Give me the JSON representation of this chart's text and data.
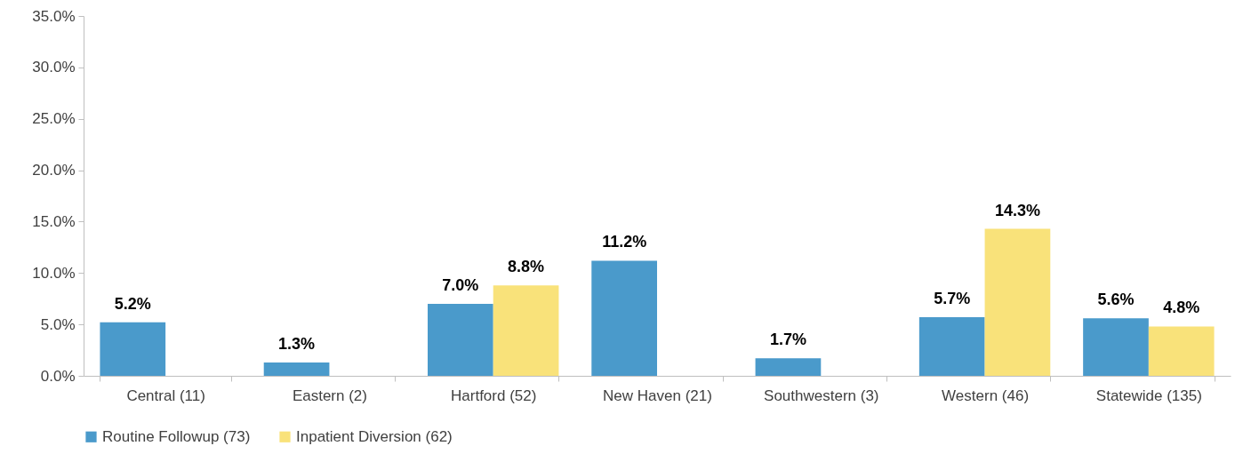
{
  "chart_data": {
    "type": "bar",
    "categories": [
      "Central (11)",
      "Eastern (2)",
      "Hartford (52)",
      "New Haven (21)",
      "Southwestern (3)",
      "Western (46)",
      "Statewide (135)"
    ],
    "series": [
      {
        "name": "Routine Followup (73)",
        "color": "#4a9acb",
        "values": [
          5.2,
          1.3,
          7.0,
          11.2,
          1.7,
          5.7,
          5.6
        ],
        "value_labels": [
          "5.2%",
          "1.3%",
          "7.0%",
          "11.2%",
          "1.7%",
          "5.7%",
          "5.6%"
        ]
      },
      {
        "name": "Inpatient Diversion (62)",
        "color": "#f9e27a",
        "values": [
          null,
          null,
          8.8,
          null,
          null,
          14.3,
          4.8
        ],
        "value_labels": [
          null,
          null,
          "8.8%",
          null,
          null,
          "14.3%",
          "4.8%"
        ]
      }
    ],
    "ylim": [
      0,
      35
    ],
    "yticks": [
      {
        "value": 0,
        "label": "0.0%"
      },
      {
        "value": 5,
        "label": "5.0%"
      },
      {
        "value": 10,
        "label": "10.0%"
      },
      {
        "value": 15,
        "label": "15.0%"
      },
      {
        "value": 20,
        "label": "20.0%"
      },
      {
        "value": 25,
        "label": "25.0%"
      },
      {
        "value": 30,
        "label": "30.0%"
      },
      {
        "value": 35,
        "label": "35.0%"
      }
    ],
    "grid": false,
    "legend": "bottom"
  }
}
